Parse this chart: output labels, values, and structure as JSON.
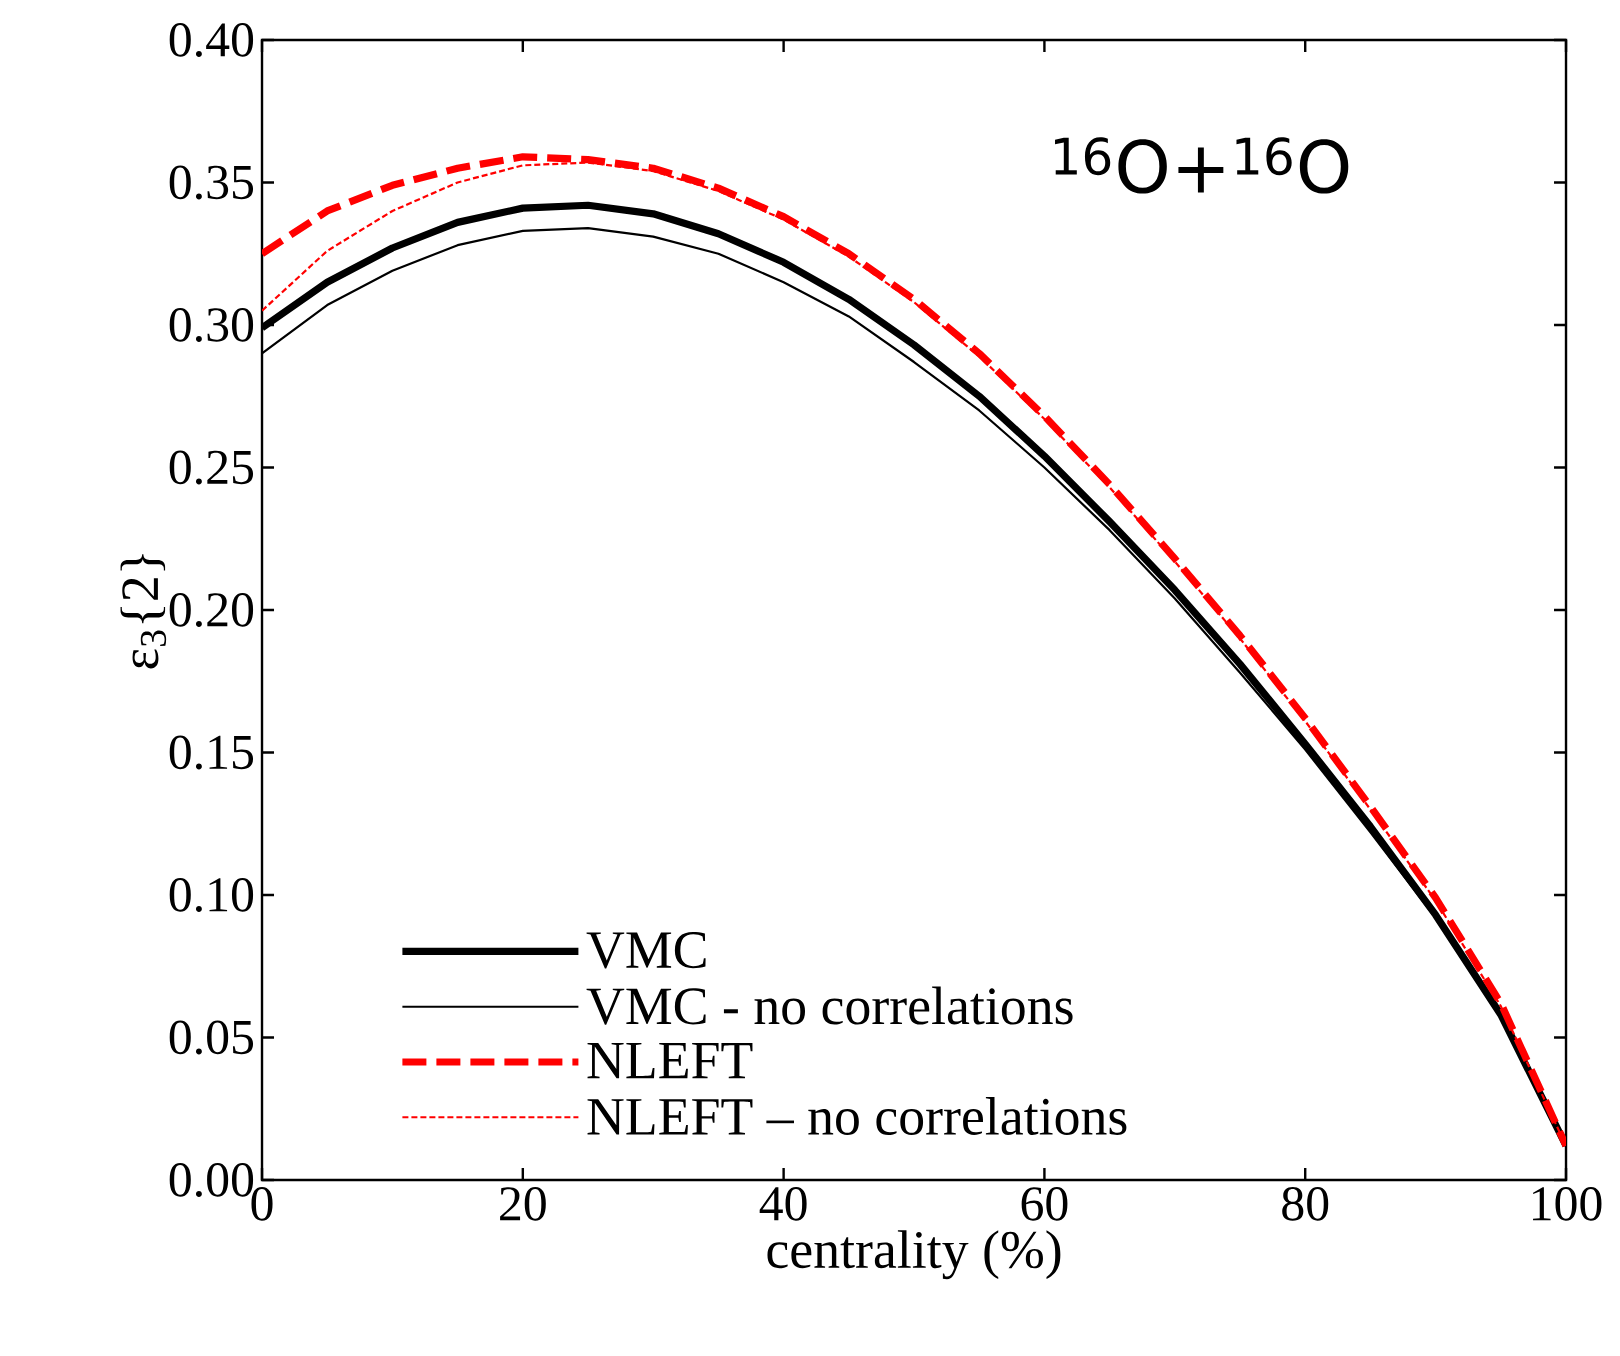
{
  "chart_data": {
    "type": "line",
    "xlabel": "centrality (%)",
    "ylabel": "ε$_{3}${2}",
    "annotations": [
      "$^{16}$O+$^{16}$O"
    ],
    "x": [
      0,
      5,
      10,
      15,
      20,
      25,
      30,
      35,
      40,
      45,
      50,
      55,
      60,
      65,
      70,
      75,
      80,
      85,
      90,
      95,
      100
    ],
    "series": [
      {
        "name": "VMC",
        "color": "#000000",
        "line_style": "solid",
        "values": [
          0.299,
          0.315,
          0.327,
          0.336,
          0.341,
          0.342,
          0.339,
          0.332,
          0.322,
          0.309,
          0.293,
          0.275,
          0.254,
          0.231,
          0.207,
          0.181,
          0.153,
          0.124,
          0.093,
          0.058,
          0.012
        ]
      },
      {
        "name": "VMC - no correlations",
        "color": "#000000",
        "line_style": "solid",
        "values": [
          0.29,
          0.307,
          0.319,
          0.328,
          0.333,
          0.334,
          0.331,
          0.325,
          0.315,
          0.303,
          0.287,
          0.27,
          0.25,
          0.228,
          0.204,
          0.178,
          0.151,
          0.122,
          0.092,
          0.057,
          0.012
        ]
      },
      {
        "name": "NLEFT",
        "color": "#ff0000",
        "line_style": "dashed",
        "values": [
          0.325,
          0.34,
          0.349,
          0.355,
          0.359,
          0.358,
          0.355,
          0.348,
          0.338,
          0.325,
          0.309,
          0.29,
          0.268,
          0.244,
          0.218,
          0.191,
          0.162,
          0.131,
          0.099,
          0.062,
          0.012
        ]
      },
      {
        "name": "NLEFT – no correlations",
        "color": "#ff0000",
        "line_style": "dashed",
        "values": [
          0.305,
          0.326,
          0.34,
          0.35,
          0.356,
          0.357,
          0.354,
          0.347,
          0.337,
          0.324,
          0.308,
          0.289,
          0.267,
          0.243,
          0.217,
          0.19,
          0.161,
          0.13,
          0.098,
          0.061,
          0.012
        ]
      }
    ],
    "xlim": [
      0,
      100
    ],
    "xticks": [
      0,
      20,
      40,
      60,
      80,
      100
    ],
    "ylim": [
      0,
      0.4
    ],
    "yticks": [
      {
        "value": 0,
        "label": "0.00"
      },
      {
        "value": 0.05,
        "label": "0.05"
      },
      {
        "value": 0.1,
        "label": "0.10"
      },
      {
        "value": 0.15,
        "label": "0.15"
      },
      {
        "value": 0.2,
        "label": "0.20"
      },
      {
        "value": 0.25,
        "label": "0.25"
      },
      {
        "value": 0.3,
        "label": "0.30"
      },
      {
        "value": 0.35,
        "label": "0.35"
      },
      {
        "value": 0.4,
        "label": "0.40"
      }
    ],
    "grid": false,
    "legend": "bottom left",
    "marker": "none"
  }
}
